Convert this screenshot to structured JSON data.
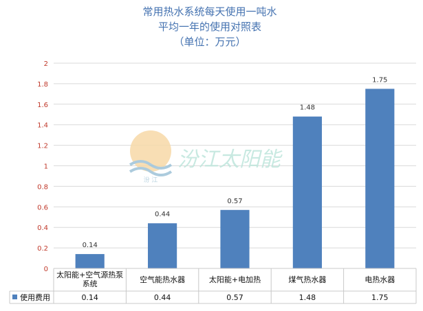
{
  "chart_data": {
    "type": "bar",
    "title_lines": [
      "常用热水系统每天使用一吨水",
      "平均一年的使用对照表",
      "（单位：万元）"
    ],
    "categories": [
      [
        "太阳能+空气源热泵",
        "系统"
      ],
      [
        "空气能热水器"
      ],
      [
        "太阳能+电加热"
      ],
      [
        "煤气热水器"
      ],
      [
        "电热水器"
      ]
    ],
    "series": [
      {
        "name": "使用费用",
        "values": [
          0.14,
          0.44,
          0.57,
          1.48,
          1.75
        ]
      }
    ],
    "data_labels": [
      "0.14",
      "0.44",
      "0.57",
      "1.48",
      "1.75"
    ],
    "ylim": [
      0,
      2
    ],
    "yticks": [
      "0",
      "0.2",
      "0.4",
      "0.6",
      "0.8",
      "1",
      "1.2",
      "1.4",
      "1.6",
      "1.8",
      "2"
    ],
    "grid": true,
    "legend_placement": "data-table",
    "colors": {
      "bar": "#4f81bd",
      "axis_text": "#c0392b",
      "title": "#4472b0"
    }
  },
  "watermark": {
    "text": "汾江太阳能",
    "logo_text": "汾 江"
  }
}
